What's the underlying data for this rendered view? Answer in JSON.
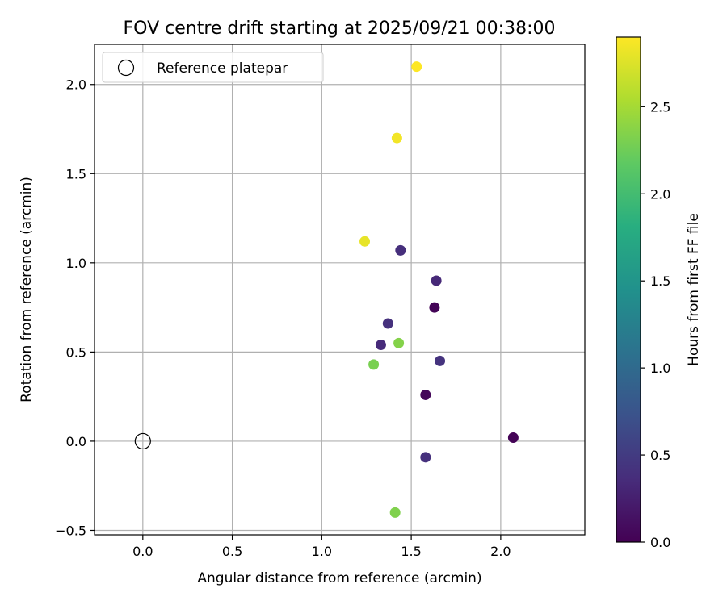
{
  "chart_data": {
    "type": "scatter",
    "title": "FOV centre drift starting at 2025/09/21 00:38:00",
    "xlabel": "Angular distance from reference (arcmin)",
    "ylabel": "Rotation from reference (arcmin)",
    "xlim": [
      -0.27,
      2.47
    ],
    "ylim": [
      -0.525,
      2.225
    ],
    "xticks": [
      0.0,
      0.5,
      1.0,
      1.5,
      2.0
    ],
    "xtick_labels": [
      "0.0",
      "0.5",
      "1.0",
      "1.5",
      "2.0"
    ],
    "yticks": [
      -0.5,
      0.0,
      0.5,
      1.0,
      1.5,
      2.0
    ],
    "ytick_labels": [
      "−0.5",
      "0.0",
      "0.5",
      "1.0",
      "1.5",
      "2.0"
    ],
    "grid": true,
    "legend": {
      "position": "upper-left",
      "entries": [
        "Reference platepar"
      ]
    },
    "reference_point": {
      "x": 0.0,
      "y": 0.0,
      "label": "Reference platepar"
    },
    "colorbar": {
      "label": "Hours from first FF file",
      "colormap": "viridis",
      "range": [
        0.0,
        2.9
      ],
      "ticks": [
        0.0,
        0.5,
        1.0,
        1.5,
        2.0,
        2.5
      ],
      "tick_labels": [
        "0.0",
        "0.5",
        "1.0",
        "1.5",
        "2.0",
        "2.5"
      ]
    },
    "points": [
      {
        "x": 1.53,
        "y": 2.1,
        "hours": 2.9
      },
      {
        "x": 1.42,
        "y": 1.7,
        "hours": 2.85
      },
      {
        "x": 1.24,
        "y": 1.12,
        "hours": 2.8
      },
      {
        "x": 1.44,
        "y": 1.07,
        "hours": 0.38
      },
      {
        "x": 1.64,
        "y": 0.9,
        "hours": 0.33
      },
      {
        "x": 1.63,
        "y": 0.75,
        "hours": 0.03
      },
      {
        "x": 1.37,
        "y": 0.66,
        "hours": 0.4
      },
      {
        "x": 1.43,
        "y": 0.55,
        "hours": 2.35
      },
      {
        "x": 1.33,
        "y": 0.54,
        "hours": 0.35
      },
      {
        "x": 1.66,
        "y": 0.45,
        "hours": 0.42
      },
      {
        "x": 1.29,
        "y": 0.43,
        "hours": 2.3
      },
      {
        "x": 1.58,
        "y": 0.26,
        "hours": 0.05
      },
      {
        "x": 2.07,
        "y": 0.02,
        "hours": 0.02
      },
      {
        "x": 1.58,
        "y": -0.09,
        "hours": 0.4
      },
      {
        "x": 1.41,
        "y": -0.4,
        "hours": 2.33
      }
    ]
  }
}
